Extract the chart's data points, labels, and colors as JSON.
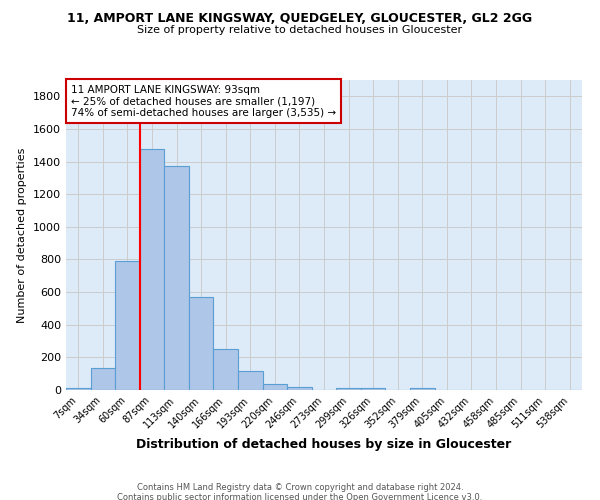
{
  "title1": "11, AMPORT LANE KINGSWAY, QUEDGELEY, GLOUCESTER, GL2 2GG",
  "title2": "Size of property relative to detached houses in Gloucester",
  "xlabel": "Distribution of detached houses by size in Gloucester",
  "ylabel": "Number of detached properties",
  "footnote1": "Contains HM Land Registry data © Crown copyright and database right 2024.",
  "footnote2": "Contains public sector information licensed under the Open Government Licence v3.0.",
  "bar_labels": [
    "7sqm",
    "34sqm",
    "60sqm",
    "87sqm",
    "113sqm",
    "140sqm",
    "166sqm",
    "193sqm",
    "220sqm",
    "246sqm",
    "273sqm",
    "299sqm",
    "326sqm",
    "352sqm",
    "379sqm",
    "405sqm",
    "432sqm",
    "458sqm",
    "485sqm",
    "511sqm",
    "538sqm"
  ],
  "bar_values": [
    10,
    135,
    790,
    1480,
    1370,
    570,
    250,
    115,
    35,
    20,
    0,
    10,
    10,
    0,
    15,
    0,
    0,
    0,
    0,
    0,
    0
  ],
  "bar_color": "#aec6e8",
  "bar_edgecolor": "#5a9fd4",
  "grid_color": "#cccccc",
  "background_color": "#ddeaf7",
  "red_line_index": 3,
  "annotation_text": "11 AMPORT LANE KINGSWAY: 93sqm\n← 25% of detached houses are smaller (1,197)\n74% of semi-detached houses are larger (3,535) →",
  "annotation_box_edgecolor": "#cc0000",
  "ylim": [
    0,
    1900
  ],
  "yticks": [
    0,
    200,
    400,
    600,
    800,
    1000,
    1200,
    1400,
    1600,
    1800
  ]
}
